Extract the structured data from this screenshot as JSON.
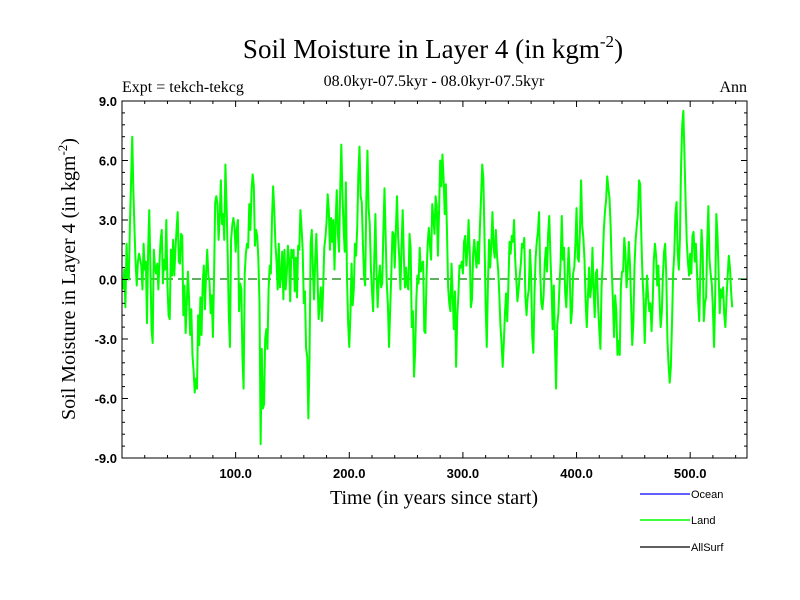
{
  "chart_data": {
    "type": "line",
    "title": "Soil Moisture in Layer 4 (in kgm",
    "title_sup": "-2",
    "title_close": ")",
    "subtitle": "08.0kyr-07.5kyr - 08.0kyr-07.5kyr",
    "expt_label": "Expt = tekch-tekcg",
    "season_label": "Ann",
    "xlabel": "Time (in years since start)",
    "ylabel": "Soil Moisture in Layer 4 (in kgm",
    "ylabel_sup": "-2",
    "ylabel_close": ")",
    "xlim": [
      0,
      550
    ],
    "ylim": [
      -9,
      9
    ],
    "x_ticks": [
      100,
      200,
      300,
      400,
      500
    ],
    "x_tick_labels": [
      "100.0",
      "200.0",
      "300.0",
      "400.0",
      "500.0"
    ],
    "y_ticks": [
      -9,
      -6,
      -3,
      0,
      3,
      6,
      9
    ],
    "y_tick_labels": [
      "-9.0",
      "-6.0",
      "-3.0",
      "0.0",
      "3.0",
      "6.0",
      "9.0"
    ],
    "zero_line": 0,
    "legend": [
      {
        "name": "Ocean",
        "color": "#0000ff"
      },
      {
        "name": "Land",
        "color": "#00ff00"
      },
      {
        "name": "AllSurf",
        "color": "#000000"
      }
    ],
    "series": [
      {
        "name": "Land",
        "color": "#00ff00",
        "x_start": 1,
        "x_step": 1,
        "values": [
          -0.5,
          0.5,
          -1.4,
          1.8,
          0.2,
          0.0,
          2.8,
          5.0,
          7.2,
          4.5,
          2.5,
          0.8,
          -0.3,
          0.9,
          1.3,
          1.0,
          0.7,
          -0.5,
          1.8,
          0.5,
          0.9,
          -2.2,
          1.5,
          3.5,
          0.6,
          -2.5,
          -3.2,
          1.5,
          0.6,
          0.3,
          0.8,
          -0.5,
          0.9,
          2.0,
          2.5,
          -0.2,
          1.0,
          0.5,
          3.0,
          -0.3,
          -1.8,
          -2.0,
          1.5,
          0.2,
          2.0,
          0.2,
          1.5,
          2.5,
          3.4,
          0.9,
          0.8,
          2.3,
          2.2,
          -1.8,
          -0.3,
          -2.7,
          -1.2,
          0.4,
          -1.0,
          -2.8,
          -1.5,
          -3.8,
          -4.6,
          -5.7,
          -5.0,
          -5.5,
          -1.8,
          -3.3,
          -0.9,
          -2.8,
          -0.2,
          0.7,
          -1.5,
          0.3,
          1.5,
          0.2,
          -0.1,
          -1.7,
          -0.8,
          -2.9,
          0.1,
          3.9,
          4.2,
          3.8,
          2.0,
          3.2,
          5.0,
          2.8,
          3.3,
          2.0,
          5.8,
          3.8,
          1.3,
          -1.8,
          -3.4,
          2.0,
          2.7,
          3.1,
          2.7,
          1.4,
          2.5,
          3.0,
          -1.6,
          -0.2,
          -0.5,
          -3.9,
          -5.5,
          0.3,
          1.3,
          1.8,
          1.6,
          3.8,
          2.5,
          4.5,
          5.3,
          4.7,
          1.7,
          2.5,
          2.2,
          1.0,
          -1.2,
          -8.3,
          -3.5,
          -6.5,
          -6.3,
          -3.0,
          -2.5,
          -3.5,
          -0.5,
          0.7,
          0.3,
          3.1,
          4.7,
          3.5,
          1.8,
          0.9,
          -0.5,
          1.8,
          -0.4,
          0.2,
          1.4,
          -1.0,
          1.5,
          -0.5,
          0.3,
          1.7,
          1.0,
          -1.1,
          1.5,
          1.1,
          1.5,
          -0.6,
          1.1,
          -0.9,
          1.7,
          1.5,
          3.5,
          2.6,
          1.5,
          -1.2,
          -0.6,
          -3.5,
          -3.9,
          -7.0,
          -4.0,
          1.8,
          2.5,
          0.5,
          -1.0,
          1.0,
          2.3,
          0.3,
          -2.0,
          -1.2,
          -0.4,
          -2.1,
          -0.5,
          1.6,
          2.1,
          2.9,
          4.3,
          3.5,
          1.5,
          3.1,
          1.9,
          3.0,
          0.5,
          2.9,
          4.5,
          2.3,
          1.4,
          4.5,
          6.8,
          4.3,
          2.6,
          1.4,
          4.9,
          0.1,
          -2.2,
          -3.4,
          -1.8,
          0.8,
          -1.3,
          -0.5,
          1.8,
          1.2,
          2.6,
          5.3,
          6.7,
          4.2,
          3.9,
          1.8,
          0.2,
          -0.3,
          4.0,
          6.5,
          3.6,
          2.8,
          0.6,
          -0.6,
          -1.6,
          1.1,
          3.3,
          0.3,
          -1.4,
          0.1,
          0.7,
          -0.4,
          -0.2,
          2.4,
          4.6,
          2.2,
          -0.2,
          -1.3,
          -3.4,
          -1.5,
          0.3,
          2.4,
          2.3,
          0.6,
          2.5,
          4.2,
          2.1,
          1.1,
          -0.5,
          1.7,
          3.5,
          1.2,
          -0.4,
          0.6,
          -0.3,
          -0.5,
          2.3,
          1.6,
          -2.4,
          -1.6,
          -4.9,
          -3.6,
          -1.0,
          0.2,
          -0.2,
          1.6,
          0.4,
          0.8,
          0.9,
          -2.6,
          -2.7,
          0.2,
          1.8,
          2.6,
          1.7,
          1.0,
          3.8,
          3.1,
          2.3,
          4.2,
          3.7,
          1.2,
          3.4,
          6.0,
          4.7,
          6.3,
          5.1,
          3.3,
          4.8,
          2.4,
          -0.4,
          -1.2,
          -1.6,
          0.8,
          -0.8,
          -2.5,
          -0.6,
          -4.4,
          -1.9,
          -0.8,
          0.7,
          0.6,
          0.9,
          0.3,
          1.9,
          2.2,
          0.7,
          1.4,
          3.0,
          1.4,
          -1.4,
          -1.0,
          1.3,
          2.0,
          1.2,
          0.6,
          1.9,
          0.8,
          2.7,
          4.2,
          5.8,
          5.1,
          2.1,
          -1.3,
          -3.4,
          -0.3,
          2.0,
          0.6,
          1.8,
          3.4,
          1.6,
          1.1,
          2.5,
          1.2,
          0.5,
          -0.7,
          -2.3,
          -3.2,
          -4.4,
          -3.2,
          -1.7,
          -0.7,
          -2.1,
          -0.3,
          1.9,
          1.3,
          2.2,
          1.9,
          3.0,
          1.0,
          0.0,
          -1.1,
          -0.5,
          0.2,
          0.8,
          1.8,
          1.6,
          2.1,
          -0.9,
          -1.8,
          -0.9,
          -0.5,
          1.5,
          0.3,
          -2.9,
          -3.7,
          -0.7,
          1.1,
          1.9,
          2.4,
          3.4,
          0.4,
          -1.2,
          -1.5,
          -0.8,
          0.8,
          1.6,
          0.4,
          2.3,
          3.2,
          1.2,
          -0.4,
          -2.5,
          -0.3,
          -3.2,
          -5.5,
          -2.3,
          -1.7,
          -0.3,
          0.9,
          3.2,
          1.0,
          1.6,
          -0.7,
          -1.4,
          0.1,
          1.6,
          0.3,
          -2.2,
          -1.6,
          0.3,
          0.6,
          1.8,
          3.6,
          1.1,
          0.9,
          2.5,
          5.0,
          2.7,
          2.1,
          1.0,
          -1.1,
          -2.4,
          -0.9,
          0.6,
          -0.9,
          -0.4,
          1.6,
          -0.5,
          -1.9,
          0.3,
          0.5,
          -1.4,
          -2.5,
          -3.5,
          -0.4,
          0.8,
          2.5,
          3.4,
          4.0,
          5.2,
          4.6,
          4.1,
          2.7,
          0.5,
          -1.1,
          -2.9,
          -0.8,
          -1.6,
          -3.8,
          -3.1,
          -3.8,
          -0.4,
          0.4,
          0.4,
          2.1,
          1.3,
          -0.4,
          0.5,
          1.9,
          0.8,
          -1.2,
          -3.3,
          -2.2,
          0.7,
          2.0,
          2.7,
          3.3,
          5.0,
          4.8,
          2.2,
          0.2,
          -1.0,
          -3.2,
          -1.2,
          0.2,
          -0.9,
          -1.6,
          -1.2,
          -2.6,
          -1.2,
          1.0,
          1.8,
          1.2,
          -0.3,
          0.7,
          -1.0,
          -2.4,
          -1.7,
          0.2,
          1.4,
          1.8,
          0.1,
          -3.1,
          -4.3,
          -5.2,
          -4.4,
          -2.2,
          0.3,
          1.3,
          3.3,
          3.9,
          1.4,
          0.5,
          2.1,
          5.8,
          7.8,
          8.5,
          6.2,
          3.9,
          1.9,
          0.9,
          0.2,
          1.3,
          0.3,
          2.2,
          2.4,
          0.9,
          1.8,
          0.4,
          -1.1,
          -2.1,
          0.6,
          2.5,
          1.4,
          -2.1,
          -1.2,
          -0.9,
          1.9,
          3.7,
          1.0,
          0.3,
          -0.2,
          -1.5,
          -3.4,
          -0.9,
          3.3,
          2.3,
          0.4,
          -1.7,
          -0.5,
          -0.9,
          -0.4,
          -1.8,
          -2.4,
          -0.9,
          0.2,
          1.2,
          0.6,
          -0.6,
          -1.4
        ]
      }
    ]
  }
}
